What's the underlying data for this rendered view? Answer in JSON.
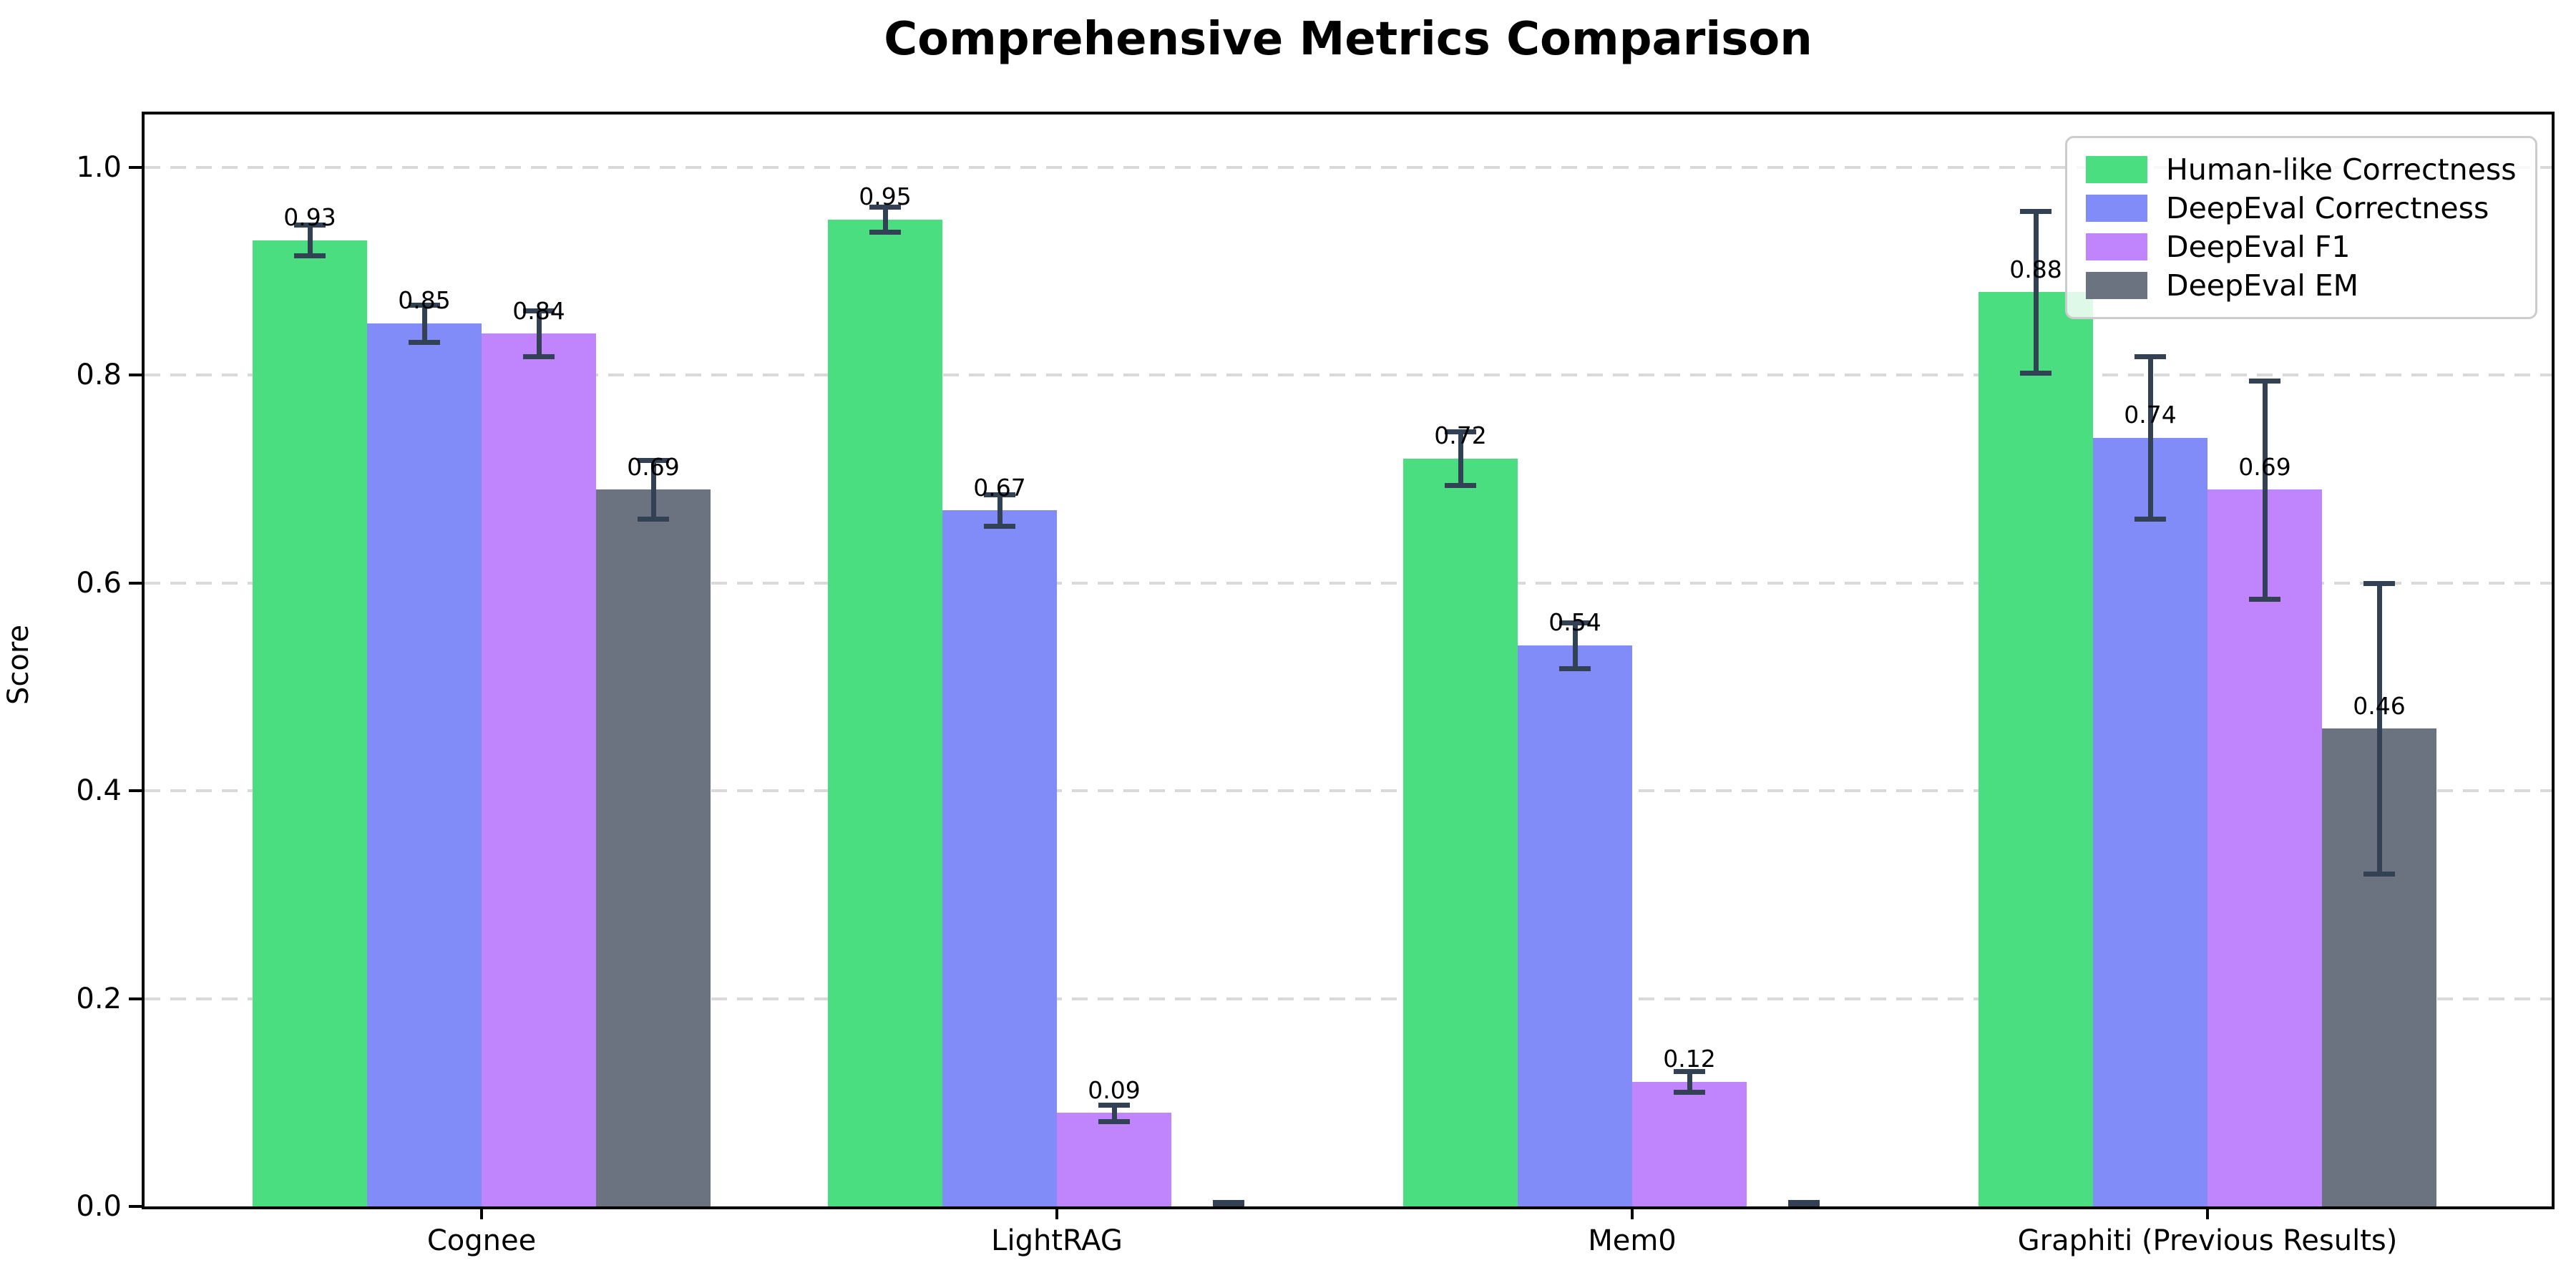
{
  "chart_data": {
    "type": "bar",
    "title": "Comprehensive Metrics Comparison",
    "ylabel": "Score",
    "xlabel": "",
    "categories": [
      "Cognee",
      "LightRAG",
      "Mem0",
      "Graphiti (Previous Results)"
    ],
    "series": [
      {
        "name": "Human-like Correctness",
        "color": "#4ade80",
        "values": [
          0.93,
          0.95,
          0.72,
          0.88
        ],
        "errors": [
          0.015,
          0.012,
          0.026,
          0.078
        ],
        "labels": [
          "0.93",
          "0.95",
          "0.72",
          "0.88"
        ]
      },
      {
        "name": "DeepEval Correctness",
        "color": "#818cf8",
        "values": [
          0.85,
          0.67,
          0.54,
          0.74
        ],
        "errors": [
          0.018,
          0.015,
          0.022,
          0.078
        ],
        "labels": [
          "0.85",
          "0.67",
          "0.54",
          "0.74"
        ]
      },
      {
        "name": "DeepEval F1",
        "color": "#c084fc",
        "values": [
          0.84,
          0.09,
          0.12,
          0.69
        ],
        "errors": [
          0.022,
          0.008,
          0.01,
          0.105
        ],
        "labels": [
          "0.84",
          "0.09",
          "0.12",
          "0.69"
        ]
      },
      {
        "name": "DeepEval EM",
        "color": "#6b7280",
        "values": [
          0.69,
          0.0,
          0.0,
          0.46
        ],
        "errors": [
          0.028,
          0.004,
          0.004,
          0.14
        ],
        "labels": [
          "0.69",
          "",
          "",
          "0.46"
        ]
      }
    ],
    "y_ticks": [
      "0.0",
      "0.2",
      "0.4",
      "0.6",
      "0.8",
      "1.0"
    ],
    "ylim": [
      0,
      1.05
    ],
    "grid": "dashed-horizontal",
    "legend_position": "upper-right",
    "error_bar_color": "#334155",
    "axis_color": "#000000",
    "gridline_color": "#d9d9d9"
  }
}
